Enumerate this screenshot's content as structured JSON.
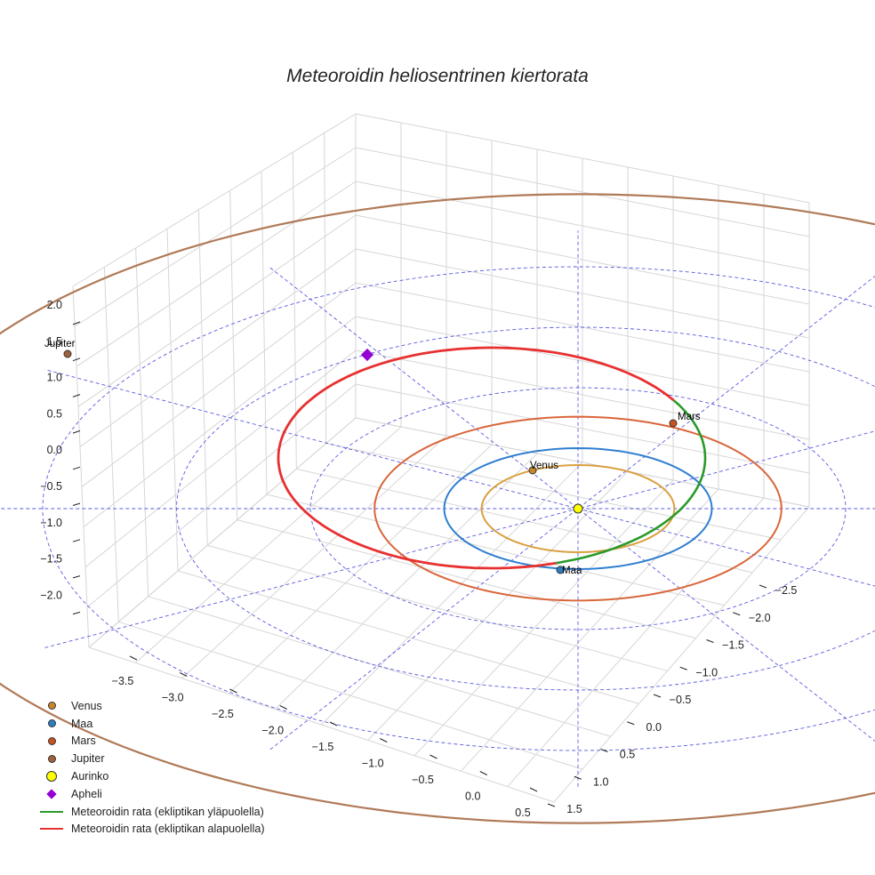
{
  "title": "Meteoroidin heliosentrinen kiertorata",
  "chart_data": {
    "type": "line",
    "title": "Meteoroidin heliosentrinen kiertorata",
    "x_ticks": [
      "−3.5",
      "−3.0",
      "−2.5",
      "−2.0",
      "−1.5",
      "−1.0",
      "−0.5",
      "0.0",
      "0.5"
    ],
    "y_ticks": [
      "−2.5",
      "−2.0",
      "−1.5",
      "−1.0",
      "−0.5",
      "0.0",
      "0.5",
      "1.0",
      "1.5"
    ],
    "z_ticks": [
      "2.0",
      "1.5",
      "1.0",
      "0.5",
      "0.0",
      "−0.5",
      "−1.0",
      "−1.5",
      "−2.0"
    ],
    "zlim": [
      -2.2,
      2.2
    ],
    "planet_orbits_au": {
      "Venus": 0.72,
      "Maa": 1.0,
      "Mars": 1.52,
      "Jupiter": 5.2
    },
    "reference_circles_au": [
      1,
      2,
      3,
      4
    ],
    "planets": [
      {
        "name": "Venus",
        "label": "Venus",
        "color": "#c8862a"
      },
      {
        "name": "Maa",
        "label": "Maa",
        "color": "#2b7fc3"
      },
      {
        "name": "Mars",
        "label": "Mars",
        "color": "#c8521f"
      },
      {
        "name": "Jupiter",
        "label": "Jupiter",
        "color": "#a0623a"
      }
    ],
    "sun": {
      "label": "Aurinko",
      "color": "#ffff00"
    },
    "aphelion": {
      "label": "Apheli",
      "color": "#9400d3"
    },
    "meteoroid": {
      "perihelion_au": 0.98,
      "aphelion_au": 3.1,
      "above_color": "#2a9a2a",
      "below_color": "#e83030"
    },
    "legend": [
      {
        "label": "Venus",
        "kind": "dot",
        "color": "#c8862a"
      },
      {
        "label": "Maa",
        "kind": "dot",
        "color": "#2b7fc3"
      },
      {
        "label": "Mars",
        "kind": "dot",
        "color": "#c8521f"
      },
      {
        "label": "Jupiter",
        "kind": "dot",
        "color": "#a0623a"
      },
      {
        "label": "Aurinko",
        "kind": "bigdot",
        "color": "#ffff00"
      },
      {
        "label": "Apheli",
        "kind": "diamond",
        "color": "#9400d3"
      },
      {
        "label": "Meteoroidin rata (ekliptikan yläpuolella)",
        "kind": "line",
        "color": "#2a9a2a"
      },
      {
        "label": "Meteoroidin rata (ekliptikan alapuolella)",
        "kind": "line",
        "color": "#e83030"
      }
    ]
  }
}
